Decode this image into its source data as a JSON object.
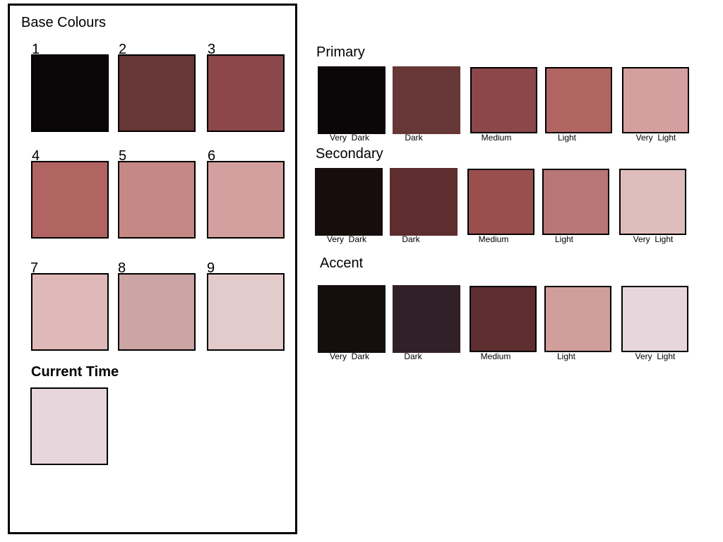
{
  "base": {
    "title": "Base  Colours",
    "swatches": [
      {
        "num": "1",
        "color": "#0b0607"
      },
      {
        "num": "2",
        "color": "#673636"
      },
      {
        "num": "3",
        "color": "#8b4749"
      },
      {
        "num": "4",
        "color": "#b16562"
      },
      {
        "num": "5",
        "color": "#c58885"
      },
      {
        "num": "6",
        "color": "#d3a09f"
      },
      {
        "num": "7",
        "color": "#deb9b8"
      },
      {
        "num": "8",
        "color": "#cba4a3"
      },
      {
        "num": "9",
        "color": "#e4cbcb"
      }
    ],
    "current_time_label": "Current Time",
    "current_time_color": "#e7d7dd"
  },
  "primary": {
    "title": "Primary",
    "swatches": [
      {
        "label": "Very  Dark",
        "color": "#0b0607"
      },
      {
        "label": "Dark",
        "color": "#673636"
      },
      {
        "label": "Medium",
        "color": "#8b4749"
      },
      {
        "label": "Light",
        "color": "#b16562"
      },
      {
        "label": "Very  Light",
        "color": "#d3a09f"
      }
    ]
  },
  "secondary": {
    "title": "Secondary",
    "swatches": [
      {
        "label": "Very  Dark",
        "color": "#170d0d"
      },
      {
        "label": "Dark",
        "color": "#5d2d2f"
      },
      {
        "label": "Medium",
        "color": "#9a4f4f"
      },
      {
        "label": "Light",
        "color": "#b87675"
      },
      {
        "label": "Very  Light",
        "color": "#dfbdbd"
      }
    ]
  },
  "accent": {
    "title": "Accent",
    "swatches": [
      {
        "label": "Very  Dark",
        "color": "#160e0d"
      },
      {
        "label": "Dark",
        "color": "#322028"
      },
      {
        "label": "Medium",
        "color": "#5d2d2f"
      },
      {
        "label": "Light",
        "color": "#d09e9b"
      },
      {
        "label": "Very  Light",
        "color": "#e7d7dd"
      }
    ]
  }
}
